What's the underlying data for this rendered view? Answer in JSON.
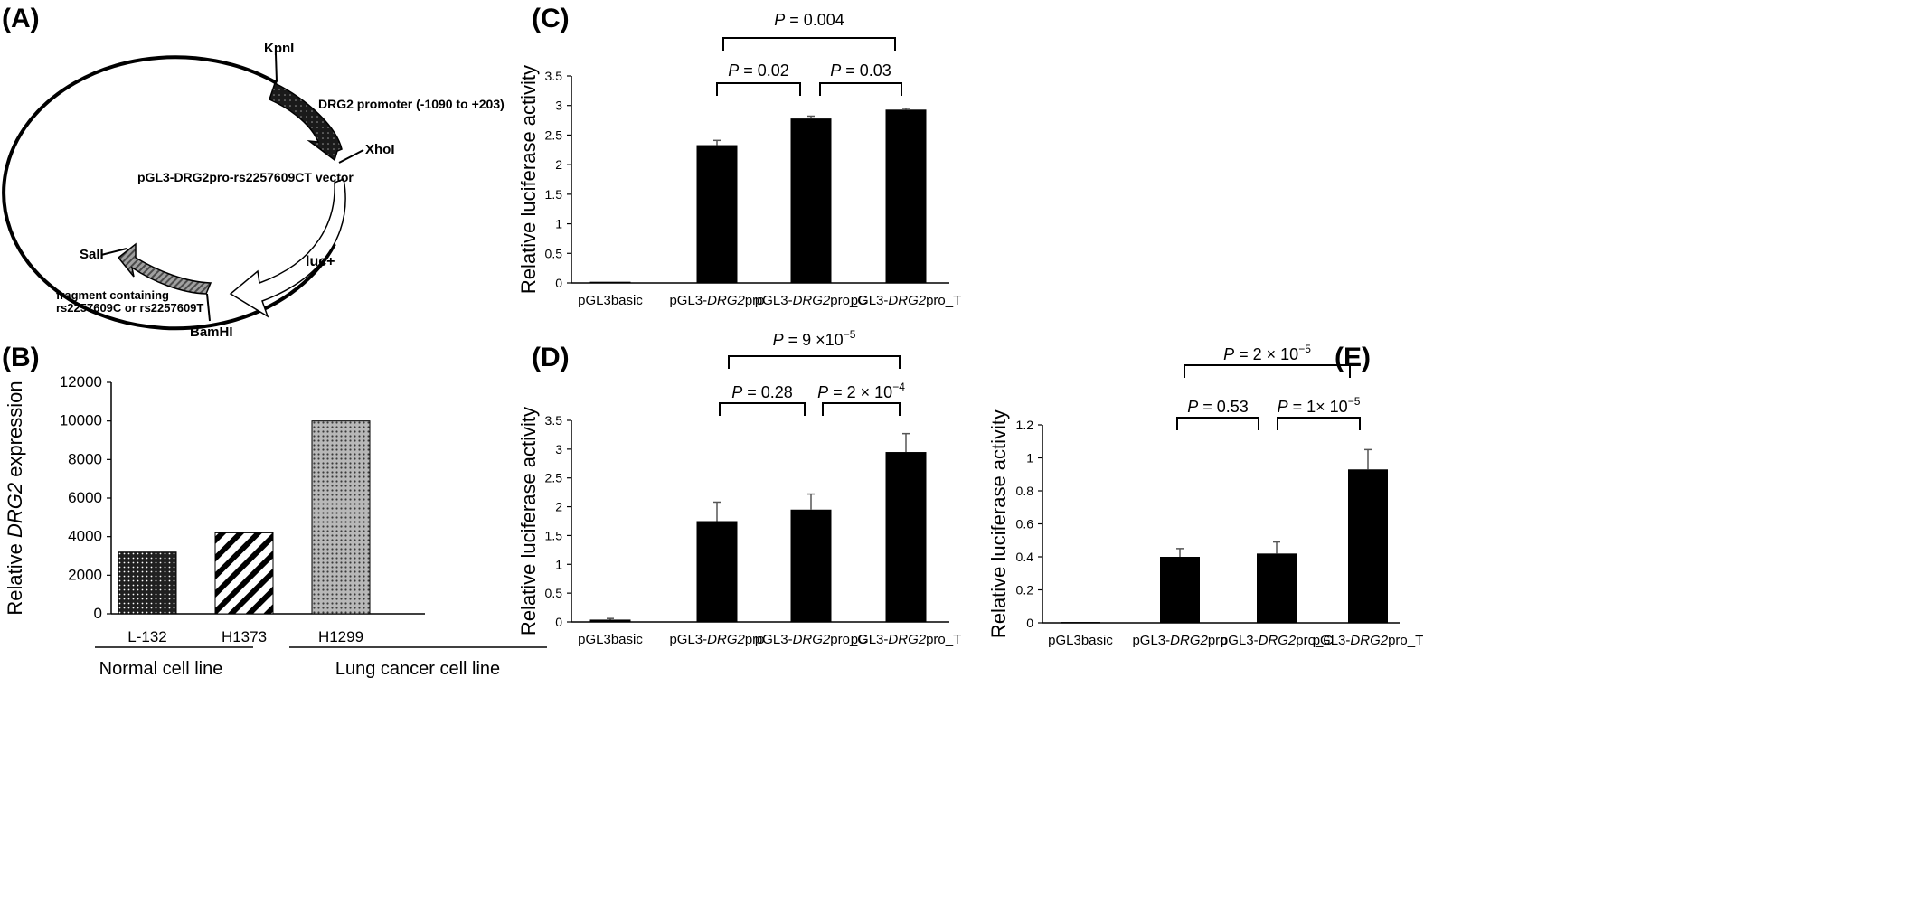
{
  "panels": {
    "A": {
      "label": "(A)",
      "vector_name": "pGL3-DRG2pro-rs2257609CT vector",
      "sites": [
        "KpnI",
        "XhoI",
        "SalI",
        "BamHI"
      ],
      "features": {
        "promoter": "DRG2 promoter (-1090  to  +203)",
        "luc": "luc+",
        "fragment_line1": "fragment containing",
        "fragment_line2": "rs2257609C  or  rs2257609T"
      },
      "colors": {
        "promoter": "#1a1a1a",
        "fragment": "#8a8a8a",
        "luc": "#ffffff"
      }
    },
    "B": {
      "label": "(B)"
    },
    "C": {
      "label": "(C)"
    },
    "D": {
      "label": "(D)"
    },
    "E": {
      "label": "(E)"
    }
  },
  "chart_data": [
    {
      "panel": "B",
      "type": "bar",
      "ylabel_pre": "Relative ",
      "ylabel_italic": "DRG2",
      "ylabel_post": " expression",
      "ylim": [
        0,
        12000
      ],
      "yticks": [
        "0",
        "2000",
        "4000",
        "6000",
        "8000",
        "10000",
        "12000"
      ],
      "categories": [
        "L-132",
        "H1373",
        "H1299"
      ],
      "values": [
        3200,
        4200,
        10000
      ],
      "bar_patterns": [
        "dots-dense",
        "diagonal-stripes",
        "dots-light"
      ],
      "groups": [
        "Normal cell line",
        "Lung cancer cell line"
      ]
    },
    {
      "panel": "C",
      "type": "bar",
      "ylabel": "Relative luciferase activity",
      "ylim": [
        0,
        3.5
      ],
      "yticks": [
        "0",
        "0.5",
        "1",
        "1.5",
        "2",
        "2.5",
        "3",
        "3.5"
      ],
      "categories": [
        {
          "pre": "pGL3basic",
          "ital": "",
          "post": ""
        },
        {
          "pre": "pGL3-",
          "ital": "DRG2",
          "post": "pro"
        },
        {
          "pre": "pGL3-",
          "ital": "DRG2",
          "post": "pro_C"
        },
        {
          "pre": "pGL3-",
          "ital": "DRG2",
          "post": "pro_T"
        }
      ],
      "values": [
        0.02,
        2.33,
        2.78,
        2.93
      ],
      "errors": [
        0.0,
        0.08,
        0.04,
        0.02
      ],
      "comparisons": [
        {
          "p": "P",
          "eq": " = ",
          "val": "0.02",
          "sup": ""
        },
        {
          "p": "P",
          "eq": " = ",
          "val": "0.03",
          "sup": ""
        },
        {
          "p": "P",
          "eq": " = ",
          "val": "0.004",
          "sup": ""
        }
      ],
      "bar_color": "#000000"
    },
    {
      "panel": "D",
      "type": "bar",
      "ylabel": "Relative luciferase activity",
      "ylim": [
        0,
        3.5
      ],
      "yticks": [
        "0",
        "0.5",
        "1",
        "1.5",
        "2",
        "2.5",
        "3",
        "3.5"
      ],
      "categories": [
        {
          "pre": "pGL3basic",
          "ital": "",
          "post": ""
        },
        {
          "pre": "pGL3-",
          "ital": "DRG2",
          "post": "pro"
        },
        {
          "pre": "pGL3-",
          "ital": "DRG2",
          "post": "pro_C"
        },
        {
          "pre": "pGL3-",
          "ital": "DRG2",
          "post": "pro_T"
        }
      ],
      "values": [
        0.04,
        1.75,
        1.95,
        2.95
      ],
      "errors": [
        0.02,
        0.33,
        0.27,
        0.32
      ],
      "comparisons": [
        {
          "p": "P",
          "eq": " = ",
          "val": "0.28",
          "sup": ""
        },
        {
          "p": "P",
          "eq": " = ",
          "val": "2 × 10",
          "sup": "−4"
        },
        {
          "p": "P",
          "eq": " = ",
          "val": "9 ×10",
          "sup": "−5"
        }
      ],
      "bar_color": "#000000"
    },
    {
      "panel": "E",
      "type": "bar",
      "ylabel": "Relative luciferase activity",
      "ylim": [
        0,
        1.2
      ],
      "yticks": [
        "0",
        "0.2",
        "0.4",
        "0.6",
        "0.8",
        "1",
        "1.2"
      ],
      "categories": [
        {
          "pre": "pGL3basic",
          "ital": "",
          "post": ""
        },
        {
          "pre": "pGL3-",
          "ital": "DRG2",
          "post": "pro"
        },
        {
          "pre": "pGL3-",
          "ital": "DRG2",
          "post": "pro_C"
        },
        {
          "pre": "pGL3-",
          "ital": "DRG2",
          "post": "pro_T"
        }
      ],
      "values": [
        0.005,
        0.4,
        0.42,
        0.93
      ],
      "errors": [
        0.0,
        0.05,
        0.07,
        0.12
      ],
      "comparisons": [
        {
          "p": "P",
          "eq": " = ",
          "val": "0.53",
          "sup": ""
        },
        {
          "p": "P",
          "eq": " = ",
          "val": "1× 10",
          "sup": "−5"
        },
        {
          "p": "P",
          "eq": " = ",
          "val": "2 × 10",
          "sup": "−5"
        }
      ],
      "bar_color": "#000000"
    }
  ]
}
